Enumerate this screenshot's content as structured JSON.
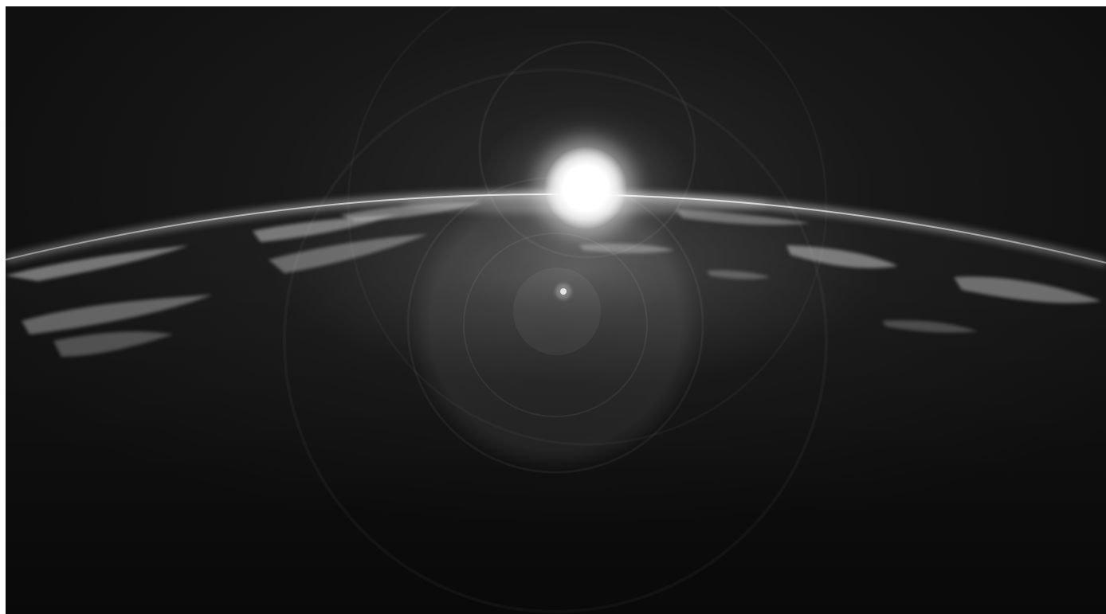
{
  "scene": {
    "subject": "earth-horizon-sunrise",
    "palette": {
      "space": "#121212",
      "planet_dark": "#161616",
      "limb_glow": "#d8d8d8",
      "cloud": "#bdbdbd",
      "sun": "#ffffff"
    }
  }
}
